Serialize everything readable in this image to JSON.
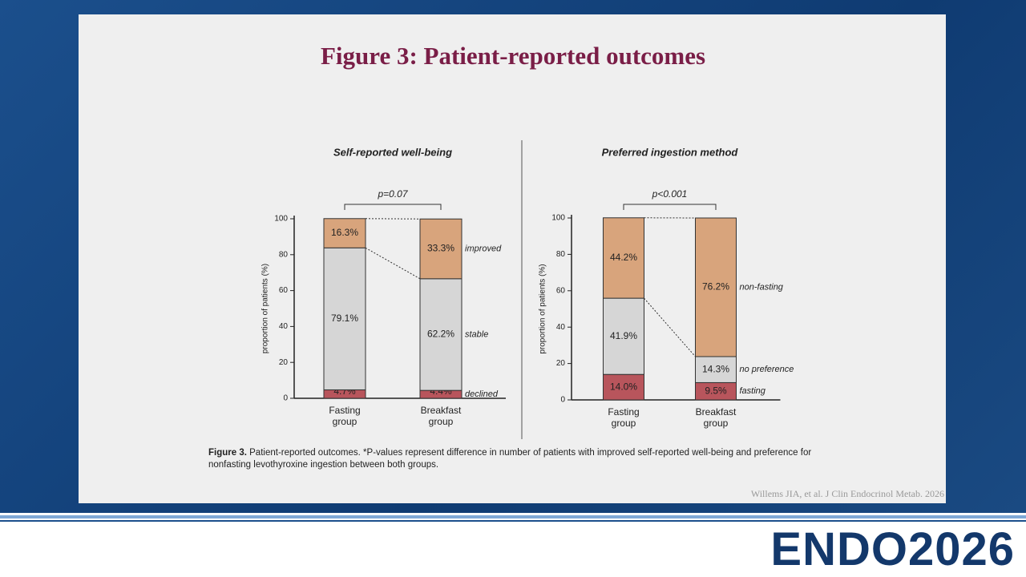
{
  "slide": {
    "title": "Figure 3: Patient-reported outcomes",
    "caption_label": "Figure 3.",
    "caption_text": "Patient-reported outcomes. *P-values represent difference in number of patients with improved self-reported well-being and preference for nonfasting levothyroxine ingestion between both groups.",
    "citation": "Willems JIA, et al. J Clin Endocrinol Metab. 2026",
    "logo": "ENDO2026"
  },
  "chart_data": [
    {
      "type": "stacked-bar",
      "title": "Self-reported well-being",
      "annotation": "p=0.07",
      "y_label": "proportion of patients (%)",
      "categories": [
        "Fasting group",
        "Breakfast group"
      ],
      "series": [
        {
          "name": "declined",
          "color": "#b8555c",
          "values": [
            4.7,
            4.4
          ],
          "value_labels": [
            "4.7%",
            "4.4%"
          ]
        },
        {
          "name": "stable",
          "color": "#d6d6d6",
          "values": [
            79.1,
            62.2
          ],
          "value_labels": [
            "79.1%",
            "62.2%"
          ]
        },
        {
          "name": "improved",
          "color": "#d8a47c",
          "values": [
            16.3,
            33.3
          ],
          "value_labels": [
            "16.3%",
            "33.3%"
          ]
        }
      ],
      "ylim": [
        0,
        100
      ],
      "yticks": [
        0,
        20,
        40,
        60,
        80,
        100
      ]
    },
    {
      "type": "stacked-bar",
      "title": "Preferred ingestion method",
      "annotation": "p<0.001",
      "y_label": "proportion of patients (%)",
      "categories": [
        "Fasting group",
        "Breakfast group"
      ],
      "series": [
        {
          "name": "fasting",
          "color": "#b8555c",
          "values": [
            14.0,
            9.5
          ],
          "value_labels": [
            "14.0%",
            "9.5%"
          ]
        },
        {
          "name": "no preference",
          "color": "#d6d6d6",
          "values": [
            41.9,
            14.3
          ],
          "value_labels": [
            "41.9%",
            "14.3%"
          ]
        },
        {
          "name": "non-fasting",
          "color": "#d8a47c",
          "values": [
            44.2,
            76.2
          ],
          "value_labels": [
            "44.2%",
            "76.2%"
          ]
        }
      ],
      "ylim": [
        0,
        100
      ],
      "yticks": [
        0,
        20,
        40,
        60,
        80,
        100
      ]
    }
  ]
}
